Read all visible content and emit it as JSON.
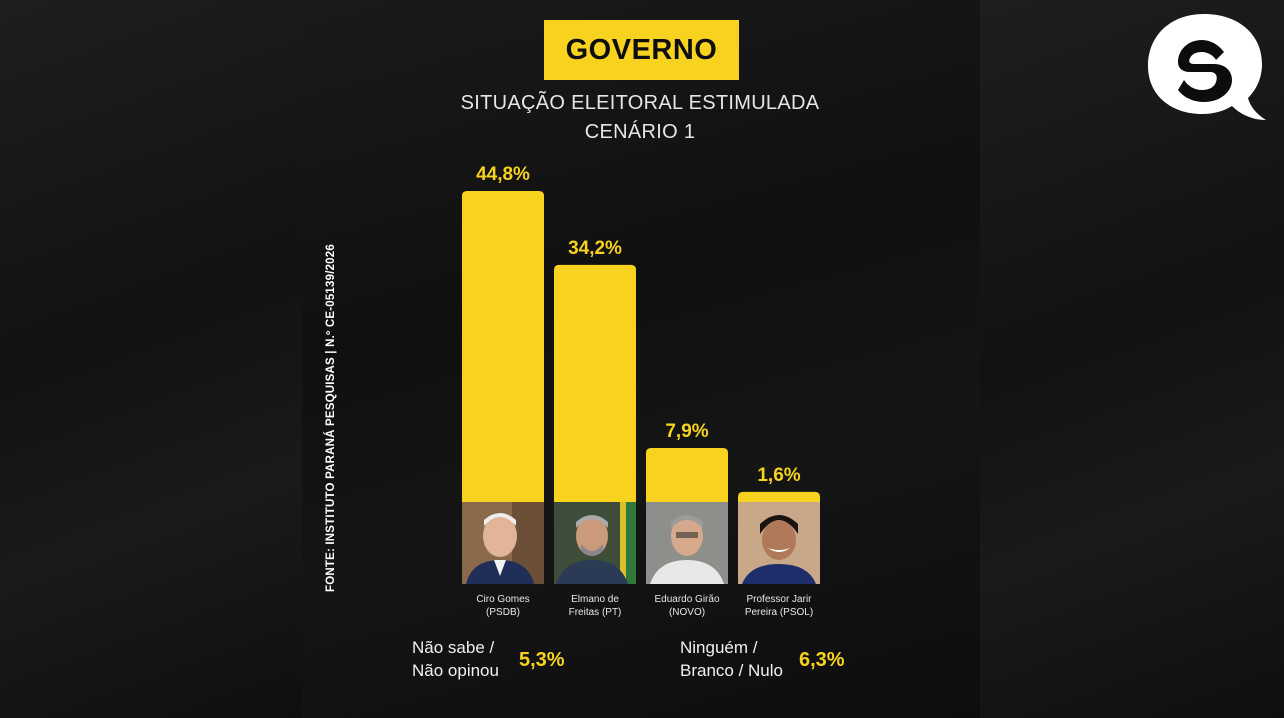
{
  "header": {
    "title": "GOVERNO",
    "subtitle_line1": "SITUAÇÃO ELEITORAL ESTIMULADA",
    "subtitle_line2": "CENÁRIO 1"
  },
  "source": "FONTE: INSTITUTO PARANÁ PESQUISAS | N.º CE-05139/2026",
  "colors": {
    "bar": "#f7d21e",
    "value_label": "#f7d21e",
    "background": "#111111"
  },
  "logo_icon": "speech-bubble-q-logo",
  "chart_data": {
    "type": "bar",
    "title": "GOVERNO",
    "subtitle": "SITUAÇÃO ELEITORAL ESTIMULADA CENÁRIO 1",
    "categories": [
      "Ciro Gomes (PSDB)",
      "Elmano de Freitas (PT)",
      "Eduardo Girão (NOVO)",
      "Professor Jarir Pereira (PSOL)"
    ],
    "values": [
      44.8,
      34.2,
      7.9,
      1.6
    ],
    "value_labels": [
      "44,8%",
      "34,2%",
      "7,9%",
      "1,6%"
    ],
    "unit": "%",
    "ylim": [
      0,
      44.8
    ],
    "grid": false,
    "legend": "none"
  },
  "candidates": [
    {
      "name_line1": "Ciro Gomes",
      "name_line2": "(PSDB)"
    },
    {
      "name_line1": "Elmano de",
      "name_line2": "Freitas (PT)"
    },
    {
      "name_line1": "Eduardo Girão",
      "name_line2": "(NOVO)"
    },
    {
      "name_line1": "Professor Jarir",
      "name_line2": "Pereira (PSOL)"
    }
  ],
  "footer": {
    "undecided_line1": "Não sabe /",
    "undecided_line2": "Não opinou",
    "undecided_value": "5,3%",
    "none_line1": "Ninguém /",
    "none_line2": "Branco / Nulo",
    "none_value": "6,3%"
  }
}
